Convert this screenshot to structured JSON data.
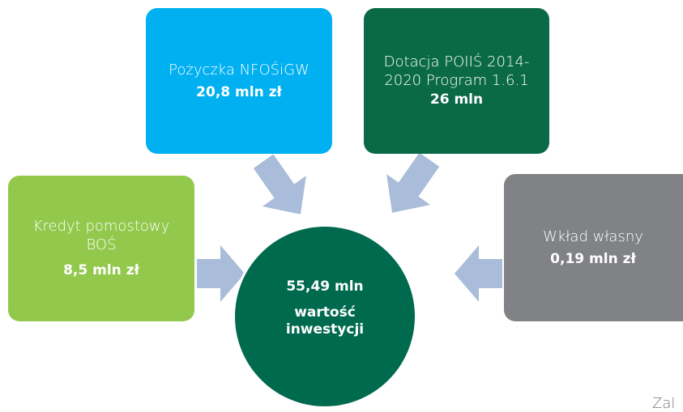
{
  "nodes": [
    {
      "label": "Pożyczka NFOŚiGW",
      "amount": "20,8 mln zł"
    },
    {
      "label": "Dotacja POIIŚ 2014-2020 Program 1.6.1",
      "amount": "26 mln"
    },
    {
      "label": "Kredyt pomostowy BOŚ",
      "amount": "8,5 mln zł"
    },
    {
      "label": "Wkład własny",
      "amount": "0,19 mln zł"
    }
  ],
  "center": {
    "amount": "55,49 mln",
    "label": "wartość inwestycji"
  },
  "footer": "Zal"
}
